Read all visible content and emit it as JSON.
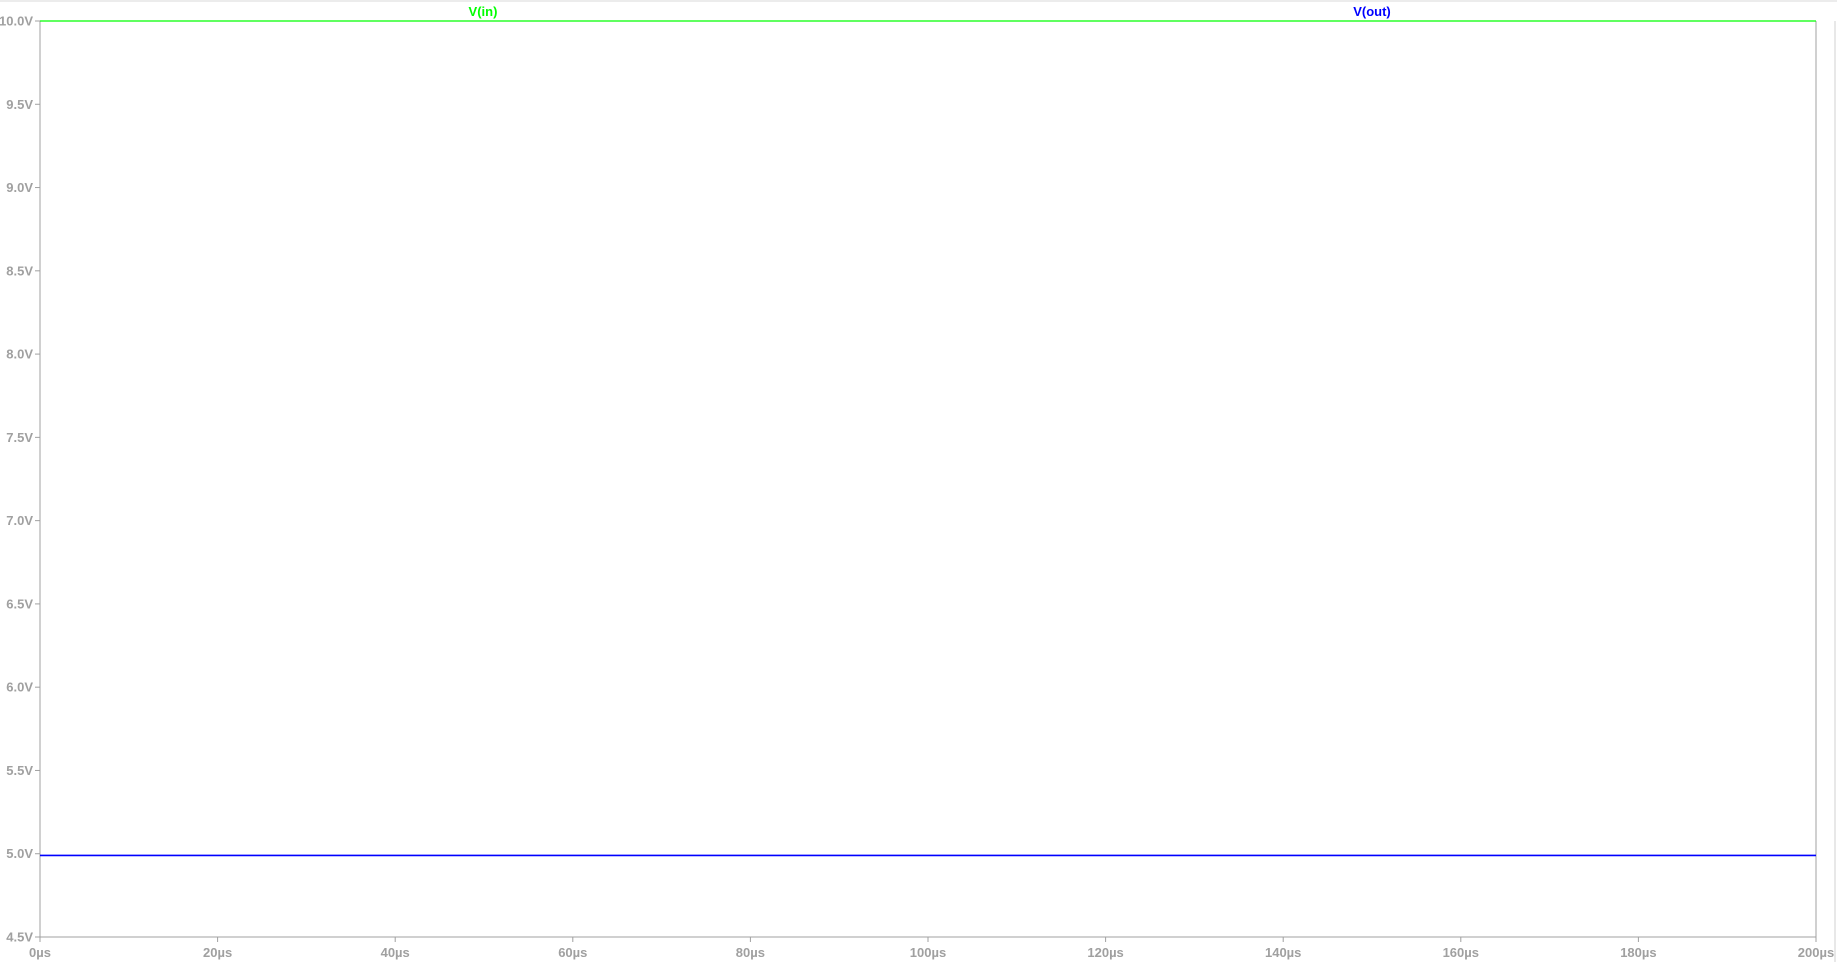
{
  "chart_data": {
    "type": "line",
    "title": "",
    "xlabel": "",
    "ylabel": "",
    "xlim": [
      0,
      200
    ],
    "ylim": [
      4.5,
      10.0
    ],
    "x_unit": "µs",
    "grid": false,
    "x_ticks": [
      "0µs",
      "20µs",
      "40µs",
      "60µs",
      "80µs",
      "100µs",
      "120µs",
      "140µs",
      "160µs",
      "180µs",
      "200µs"
    ],
    "x_tick_values": [
      0,
      20,
      40,
      60,
      80,
      100,
      120,
      140,
      160,
      180,
      200
    ],
    "y_ticks": [
      "4.5V",
      "5.0V",
      "5.5V",
      "6.0V",
      "6.5V",
      "7.0V",
      "7.5V",
      "8.0V",
      "8.5V",
      "9.0V",
      "9.5V",
      "10.0V"
    ],
    "y_tick_values": [
      4.5,
      5.0,
      5.5,
      6.0,
      6.5,
      7.0,
      7.5,
      8.0,
      8.5,
      9.0,
      9.5,
      10.0
    ],
    "series": [
      {
        "name": "V(in)",
        "color": "#00ff00",
        "x": [
          0,
          200
        ],
        "y": [
          10.0,
          10.0
        ]
      },
      {
        "name": "V(out)",
        "color": "#0000ff",
        "x": [
          0,
          200
        ],
        "y": [
          4.99,
          4.99
        ]
      }
    ],
    "legend": "top"
  }
}
